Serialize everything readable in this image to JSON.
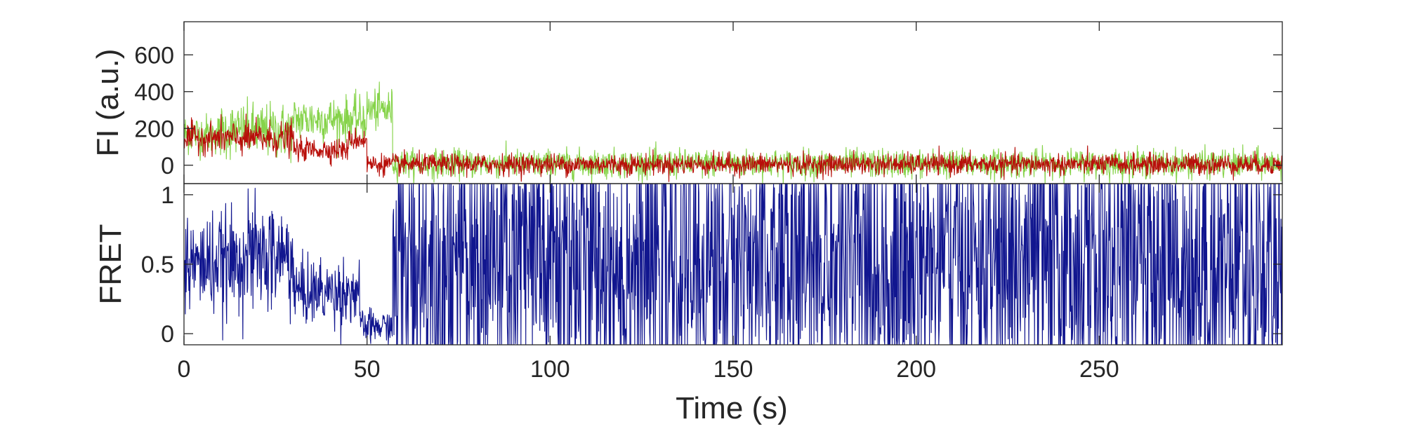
{
  "chart_data": [
    {
      "type": "line",
      "panel": "fluorescence",
      "ylabel": "FI (a.u.)",
      "xlim": [
        0,
        300
      ],
      "ylim": [
        -100,
        780
      ],
      "yticks": [
        0,
        200,
        400,
        600
      ],
      "ytick_labels": [
        "0",
        "200",
        "400",
        "600"
      ],
      "grid": false,
      "series": [
        {
          "color": "#86d34a",
          "segments": [
            {
              "x_start": 0,
              "x_end": 10,
              "mean": 170,
              "noise": 55
            },
            {
              "x_start": 10,
              "x_end": 30,
              "mean": 185,
              "noise": 75
            },
            {
              "x_start": 30,
              "x_end": 50,
              "mean": 250,
              "noise": 60
            },
            {
              "x_start": 50,
              "x_end": 57,
              "mean": 300,
              "noise": 55
            },
            {
              "x_start": 57,
              "x_end": 300,
              "mean": 8,
              "noise": 38
            }
          ]
        },
        {
          "color": "#b80f0a",
          "segments": [
            {
              "x_start": 0,
              "x_end": 10,
              "mean": 150,
              "noise": 40
            },
            {
              "x_start": 10,
              "x_end": 30,
              "mean": 145,
              "noise": 45
            },
            {
              "x_start": 30,
              "x_end": 45,
              "mean": 85,
              "noise": 30
            },
            {
              "x_start": 45,
              "x_end": 50,
              "mean": 140,
              "noise": 30
            },
            {
              "x_start": 50,
              "x_end": 300,
              "mean": 5,
              "noise": 28
            }
          ]
        }
      ]
    },
    {
      "type": "line",
      "panel": "fret",
      "ylabel": "FRET",
      "xlabel": "Time (s)",
      "xlim": [
        0,
        300
      ],
      "ylim": [
        -0.08,
        1.08
      ],
      "yticks": [
        0,
        0.5,
        1
      ],
      "ytick_labels": [
        "0",
        "0.5",
        "1"
      ],
      "xticks": [
        0,
        50,
        100,
        150,
        200,
        250
      ],
      "xtick_labels": [
        "0",
        "50",
        "100",
        "150",
        "200",
        "250"
      ],
      "grid": false,
      "series": [
        {
          "color": "#11168f",
          "segments": [
            {
              "x_start": 0,
              "x_end": 15,
              "mean": 0.5,
              "noise": 0.18
            },
            {
              "x_start": 15,
              "x_end": 30,
              "mean": 0.55,
              "noise": 0.2
            },
            {
              "x_start": 30,
              "x_end": 48,
              "mean": 0.3,
              "noise": 0.12
            },
            {
              "x_start": 48,
              "x_end": 57,
              "mean": 0.05,
              "noise": 0.06
            },
            {
              "x_start": 57,
              "x_end": 300,
              "mean": 0.5,
              "noise": 0.6
            }
          ]
        }
      ]
    }
  ]
}
